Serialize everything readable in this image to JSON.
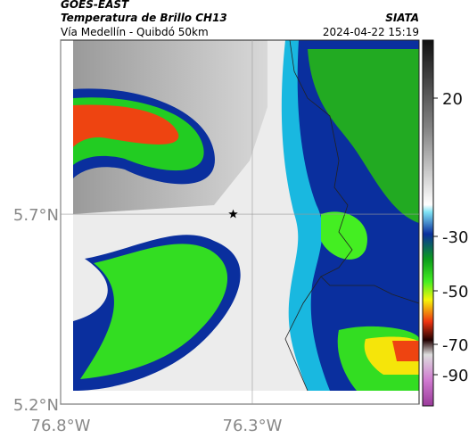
{
  "header": {
    "title": "GOES-EAST",
    "subtitle": "Temperatura de Brillo CH13",
    "location": "Vía Medellín - Quibdó 50km",
    "source": "SIATA",
    "datetime": "2024-04-22 15:19"
  },
  "map": {
    "xlim": [
      -76.8,
      -75.865
    ],
    "ylim": [
      5.2,
      6.158
    ],
    "xticks": [
      {
        "value": -76.8,
        "label": "76.8°W"
      },
      {
        "value": -76.3,
        "label": "76.3°W"
      }
    ],
    "yticks": [
      {
        "value": 5.2,
        "label": "5.2°N"
      },
      {
        "value": 5.7,
        "label": "5.7°N"
      }
    ],
    "marker": {
      "lon": -76.35,
      "lat": 5.7
    }
  },
  "colorbar": {
    "ticks": [
      20,
      -30,
      -50,
      -70,
      -90
    ]
  }
}
